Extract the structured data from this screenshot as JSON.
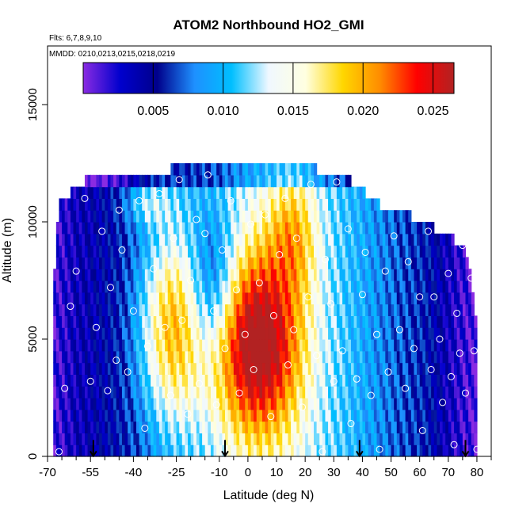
{
  "chart_data": {
    "type": "heatmap",
    "title": "ATOM2 Northbound HO2_GMI",
    "subtitle_lines": [
      "Flts: 6,7,8,9,10",
      "MMDD: 0210,0213,0215,0218,0219"
    ],
    "xlabel": "Latitude (deg N)",
    "ylabel": "Altitude (m)",
    "xlim": [
      -70,
      85
    ],
    "ylim": [
      0,
      17500
    ],
    "x_ticks": [
      -70,
      -55,
      -40,
      -25,
      -10,
      0,
      10,
      20,
      30,
      40,
      50,
      60,
      70,
      80
    ],
    "x_tick_labels": [
      "-70",
      "-55",
      "-40",
      "-25",
      "-10",
      "0",
      "10",
      "20",
      "30",
      "40",
      "50",
      "60",
      "70",
      "80"
    ],
    "x_minor_ticks": [
      -65,
      -60,
      -50,
      -45,
      -35,
      -30,
      -20,
      -15,
      -5,
      5,
      15,
      25,
      35,
      45,
      55,
      65,
      75,
      85
    ],
    "y_ticks": [
      0,
      5000,
      10000,
      15000
    ],
    "y_tick_labels": [
      "0",
      "5000",
      "10000",
      "15000"
    ],
    "colorbar": {
      "min": 0.0,
      "max": 0.0265,
      "ticks": [
        0.005,
        0.01,
        0.015,
        0.02,
        0.025
      ],
      "tick_labels": [
        "0.005",
        "0.010",
        "0.015",
        "0.020",
        "0.025"
      ],
      "colors": [
        "#8a2be2",
        "#0000cd",
        "#00008b",
        "#1e90ff",
        "#00bfff",
        "#f0f8ff",
        "#ffffe0",
        "#ffd700",
        "#ff8c00",
        "#ff0000",
        "#b22222"
      ]
    },
    "grid": false,
    "profile_markers_lat": [
      -54,
      -8,
      39,
      76
    ],
    "altitude_levels": [
      250,
      750,
      1250,
      1750,
      2250,
      2750,
      3250,
      3750,
      4250,
      4750,
      5250,
      5750,
      6250,
      6750,
      7250,
      7750,
      8250,
      8750,
      9250,
      9750,
      10250,
      10750,
      11250,
      11750,
      12250
    ],
    "level_lat_range": [
      [
        -68,
        80
      ],
      [
        -68,
        80
      ],
      [
        -68,
        80
      ],
      [
        -68,
        80
      ],
      [
        -68,
        80
      ],
      [
        -68,
        80
      ],
      [
        -68,
        80
      ],
      [
        -68,
        80
      ],
      [
        -68,
        80
      ],
      [
        -68,
        80
      ],
      [
        -68,
        80
      ],
      [
        -68,
        80
      ],
      [
        -68,
        79
      ],
      [
        -68,
        79
      ],
      [
        -68,
        78
      ],
      [
        -68,
        78
      ],
      [
        -67,
        77
      ],
      [
        -67,
        76
      ],
      [
        -67,
        72
      ],
      [
        -67,
        65
      ],
      [
        -66,
        57
      ],
      [
        -66,
        46
      ],
      [
        -62,
        41
      ],
      [
        -57,
        36
      ],
      [
        -27,
        24
      ]
    ],
    "observations": [
      [
        -66,
        200
      ],
      [
        -64,
        2900
      ],
      [
        -62,
        6400
      ],
      [
        -60,
        7900
      ],
      [
        -57,
        11000
      ],
      [
        -55,
        3200
      ],
      [
        -53,
        5500
      ],
      [
        -51,
        9600
      ],
      [
        -49,
        2800
      ],
      [
        -48,
        7200
      ],
      [
        -46,
        4100
      ],
      [
        -45,
        10500
      ],
      [
        -44,
        8800
      ],
      [
        -42,
        3600
      ],
      [
        -40,
        6200
      ],
      [
        -38,
        10900
      ],
      [
        -36,
        1200
      ],
      [
        -35,
        4700
      ],
      [
        -33,
        8000
      ],
      [
        -31,
        11200
      ],
      [
        -29,
        5500
      ],
      [
        -27,
        2600
      ],
      [
        -26,
        9300
      ],
      [
        -24,
        11800
      ],
      [
        -23,
        5800
      ],
      [
        -21,
        1800
      ],
      [
        -20,
        7500
      ],
      [
        -18,
        10100
      ],
      [
        -17,
        3100
      ],
      [
        -15,
        9500
      ],
      [
        -14,
        12000
      ],
      [
        -12,
        6200
      ],
      [
        -11,
        2200
      ],
      [
        -9,
        8800
      ],
      [
        -8,
        4600
      ],
      [
        -6,
        10900
      ],
      [
        -4,
        7100
      ],
      [
        -3,
        2700
      ],
      [
        -1,
        5200
      ],
      [
        1,
        9900
      ],
      [
        2,
        3700
      ],
      [
        4,
        7400
      ],
      [
        6,
        10300
      ],
      [
        8,
        1700
      ],
      [
        9,
        6000
      ],
      [
        11,
        8600
      ],
      [
        13,
        11000
      ],
      [
        14,
        3900
      ],
      [
        16,
        5400
      ],
      [
        17,
        9300
      ],
      [
        19,
        2100
      ],
      [
        21,
        6800
      ],
      [
        22,
        11600
      ],
      [
        24,
        4300
      ],
      [
        26,
        200
      ],
      [
        27,
        8400
      ],
      [
        29,
        6500
      ],
      [
        30,
        3200
      ],
      [
        31,
        11700
      ],
      [
        33,
        4500
      ],
      [
        35,
        9700
      ],
      [
        36,
        1400
      ],
      [
        38,
        3300
      ],
      [
        40,
        6900
      ],
      [
        41,
        8700
      ],
      [
        43,
        2600
      ],
      [
        45,
        5200
      ],
      [
        46,
        300
      ],
      [
        48,
        7900
      ],
      [
        49,
        3600
      ],
      [
        51,
        9400
      ],
      [
        53,
        5400
      ],
      [
        55,
        2900
      ],
      [
        56,
        8300
      ],
      [
        58,
        4600
      ],
      [
        60,
        6800
      ],
      [
        61,
        1100
      ],
      [
        63,
        9600
      ],
      [
        64,
        3700
      ],
      [
        65,
        6800
      ],
      [
        67,
        5000
      ],
      [
        68,
        2300
      ],
      [
        70,
        7800
      ],
      [
        71,
        3400
      ],
      [
        72,
        500
      ],
      [
        73,
        6100
      ],
      [
        74,
        4400
      ],
      [
        75,
        9000
      ],
      [
        76,
        2700
      ],
      [
        78,
        7600
      ],
      [
        79,
        4500
      ],
      [
        80,
        8700
      ],
      [
        80,
        300
      ]
    ]
  }
}
